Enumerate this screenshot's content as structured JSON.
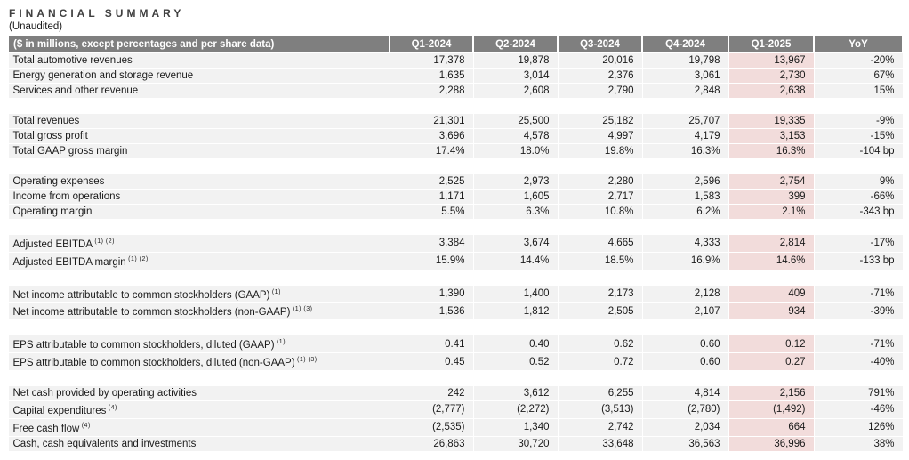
{
  "title": "FINANCIAL SUMMARY",
  "subtitle": "(Unaudited)",
  "colors": {
    "header_bg": "#7f7f7f",
    "header_text": "#ffffff",
    "row_bg": "#f2f2f2",
    "highlight_column_bg": "#f2dcdb"
  },
  "chart_data": {
    "type": "table",
    "title": "FINANCIAL SUMMARY (Unaudited)",
    "columns": [
      "($ in millions, except percentages and per share data)",
      "Q1-2024",
      "Q2-2024",
      "Q3-2024",
      "Q4-2024",
      "Q1-2025",
      "YoY"
    ],
    "highlighted_column": "Q1-2025",
    "groups": [
      {
        "rows": [
          {
            "label": "Total automotive revenues",
            "footnote": "",
            "values": [
              "17,378",
              "19,878",
              "20,016",
              "19,798",
              "13,967",
              "-20%"
            ]
          },
          {
            "label": "Energy generation and storage revenue",
            "footnote": "",
            "values": [
              "1,635",
              "3,014",
              "2,376",
              "3,061",
              "2,730",
              "67%"
            ]
          },
          {
            "label": "Services and other revenue",
            "footnote": "",
            "values": [
              "2,288",
              "2,608",
              "2,790",
              "2,848",
              "2,638",
              "15%"
            ]
          }
        ]
      },
      {
        "rows": [
          {
            "label": "Total revenues",
            "footnote": "",
            "values": [
              "21,301",
              "25,500",
              "25,182",
              "25,707",
              "19,335",
              "-9%"
            ]
          },
          {
            "label": "Total gross profit",
            "footnote": "",
            "values": [
              "3,696",
              "4,578",
              "4,997",
              "4,179",
              "3,153",
              "-15%"
            ]
          },
          {
            "label": "Total GAAP gross margin",
            "footnote": "",
            "values": [
              "17.4%",
              "18.0%",
              "19.8%",
              "16.3%",
              "16.3%",
              "-104 bp"
            ]
          }
        ]
      },
      {
        "rows": [
          {
            "label": "Operating expenses",
            "footnote": "",
            "values": [
              "2,525",
              "2,973",
              "2,280",
              "2,596",
              "2,754",
              "9%"
            ]
          },
          {
            "label": "Income from operations",
            "footnote": "",
            "values": [
              "1,171",
              "1,605",
              "2,717",
              "1,583",
              "399",
              "-66%"
            ]
          },
          {
            "label": "Operating margin",
            "footnote": "",
            "values": [
              "5.5%",
              "6.3%",
              "10.8%",
              "6.2%",
              "2.1%",
              "-343 bp"
            ]
          }
        ]
      },
      {
        "rows": [
          {
            "label": "Adjusted EBITDA",
            "footnote": "(1) (2)",
            "values": [
              "3,384",
              "3,674",
              "4,665",
              "4,333",
              "2,814",
              "-17%"
            ]
          },
          {
            "label": "Adjusted EBITDA margin",
            "footnote": "(1) (2)",
            "values": [
              "15.9%",
              "14.4%",
              "18.5%",
              "16.9%",
              "14.6%",
              "-133 bp"
            ]
          }
        ]
      },
      {
        "rows": [
          {
            "label": "Net income attributable to common stockholders (GAAP)",
            "footnote": "(1)",
            "values": [
              "1,390",
              "1,400",
              "2,173",
              "2,128",
              "409",
              "-71%"
            ]
          },
          {
            "label": "Net income attributable to common stockholders (non-GAAP)",
            "footnote": "(1) (3)",
            "values": [
              "1,536",
              "1,812",
              "2,505",
              "2,107",
              "934",
              "-39%"
            ]
          }
        ]
      },
      {
        "rows": [
          {
            "label": "EPS attributable to common stockholders, diluted (GAAP)",
            "footnote": "(1)",
            "values": [
              "0.41",
              "0.40",
              "0.62",
              "0.60",
              "0.12",
              "-71%"
            ]
          },
          {
            "label": "EPS attributable to common stockholders, diluted (non-GAAP)",
            "footnote": "(1) (3)",
            "values": [
              "0.45",
              "0.52",
              "0.72",
              "0.60",
              "0.27",
              "-40%"
            ]
          }
        ]
      },
      {
        "rows": [
          {
            "label": "Net cash provided by operating activities",
            "footnote": "",
            "values": [
              "242",
              "3,612",
              "6,255",
              "4,814",
              "2,156",
              "791%"
            ]
          },
          {
            "label": "Capital expenditures",
            "footnote": "(4)",
            "values": [
              "(2,777)",
              "(2,272)",
              "(3,513)",
              "(2,780)",
              "(1,492)",
              "-46%"
            ]
          },
          {
            "label": "Free cash flow",
            "footnote": "(4)",
            "values": [
              "(2,535)",
              "1,340",
              "2,742",
              "2,034",
              "664",
              "126%"
            ]
          },
          {
            "label": "Cash, cash equivalents and investments",
            "footnote": "",
            "values": [
              "26,863",
              "30,720",
              "33,648",
              "36,563",
              "36,996",
              "38%"
            ]
          }
        ]
      }
    ]
  }
}
